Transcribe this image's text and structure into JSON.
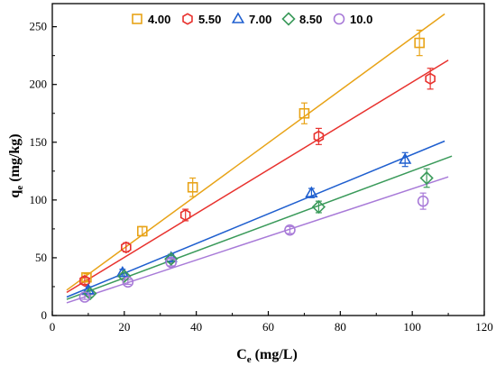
{
  "chart_data": {
    "type": "scatter",
    "xlabel": "C",
    "xlabel_sub": "e",
    "xlabel_unit": " (mg/L)",
    "ylabel": "q",
    "ylabel_sub": "e",
    "ylabel_unit": " (mg/kg)",
    "xlim": [
      0,
      120
    ],
    "ylim": [
      0,
      270
    ],
    "xticks": [
      0,
      20,
      40,
      60,
      80,
      100,
      120
    ],
    "yticks": [
      0,
      50,
      100,
      150,
      200,
      250
    ],
    "grid": false,
    "legend_position": "top",
    "series": [
      {
        "name": "4.00",
        "color": "#e8a317",
        "marker": "square",
        "points": [
          [
            9.5,
            33
          ],
          [
            25,
            73
          ],
          [
            39,
            111
          ],
          [
            70,
            175
          ],
          [
            102,
            236
          ]
        ],
        "errors": [
          3,
          4,
          8,
          9,
          11
        ],
        "fit": [
          [
            4,
            22
          ],
          [
            109,
            261
          ]
        ]
      },
      {
        "name": "5.50",
        "color": "#e8322e",
        "marker": "hexagon",
        "points": [
          [
            9,
            30
          ],
          [
            20.5,
            59
          ],
          [
            37,
            87
          ],
          [
            74,
            155
          ],
          [
            105,
            205
          ]
        ],
        "errors": [
          3,
          4,
          5,
          7,
          9
        ],
        "fit": [
          [
            4,
            20
          ],
          [
            110,
            221
          ]
        ]
      },
      {
        "name": "7.00",
        "color": "#1f5fcf",
        "marker": "triangle",
        "points": [
          [
            10,
            22
          ],
          [
            19.5,
            37
          ],
          [
            33,
            50
          ],
          [
            72,
            106
          ],
          [
            98,
            135
          ]
        ],
        "errors": [
          3,
          3,
          3,
          4,
          6
        ],
        "fit": [
          [
            4,
            16
          ],
          [
            109,
            151
          ]
        ]
      },
      {
        "name": "8.50",
        "color": "#3a9a5a",
        "marker": "diamond",
        "points": [
          [
            10.5,
            19
          ],
          [
            20,
            34
          ],
          [
            33,
            49
          ],
          [
            74,
            94
          ],
          [
            104,
            119
          ]
        ],
        "errors": [
          3,
          3,
          3,
          5,
          8
        ],
        "fit": [
          [
            4,
            14
          ],
          [
            111,
            138
          ]
        ]
      },
      {
        "name": "10.0",
        "color": "#a87ad8",
        "marker": "circle",
        "points": [
          [
            9,
            16
          ],
          [
            21,
            29
          ],
          [
            33,
            46
          ],
          [
            66,
            74
          ],
          [
            103,
            99
          ]
        ],
        "errors": [
          2,
          2,
          3,
          3,
          7
        ],
        "fit": [
          [
            4,
            11
          ],
          [
            110,
            120
          ]
        ]
      }
    ]
  }
}
